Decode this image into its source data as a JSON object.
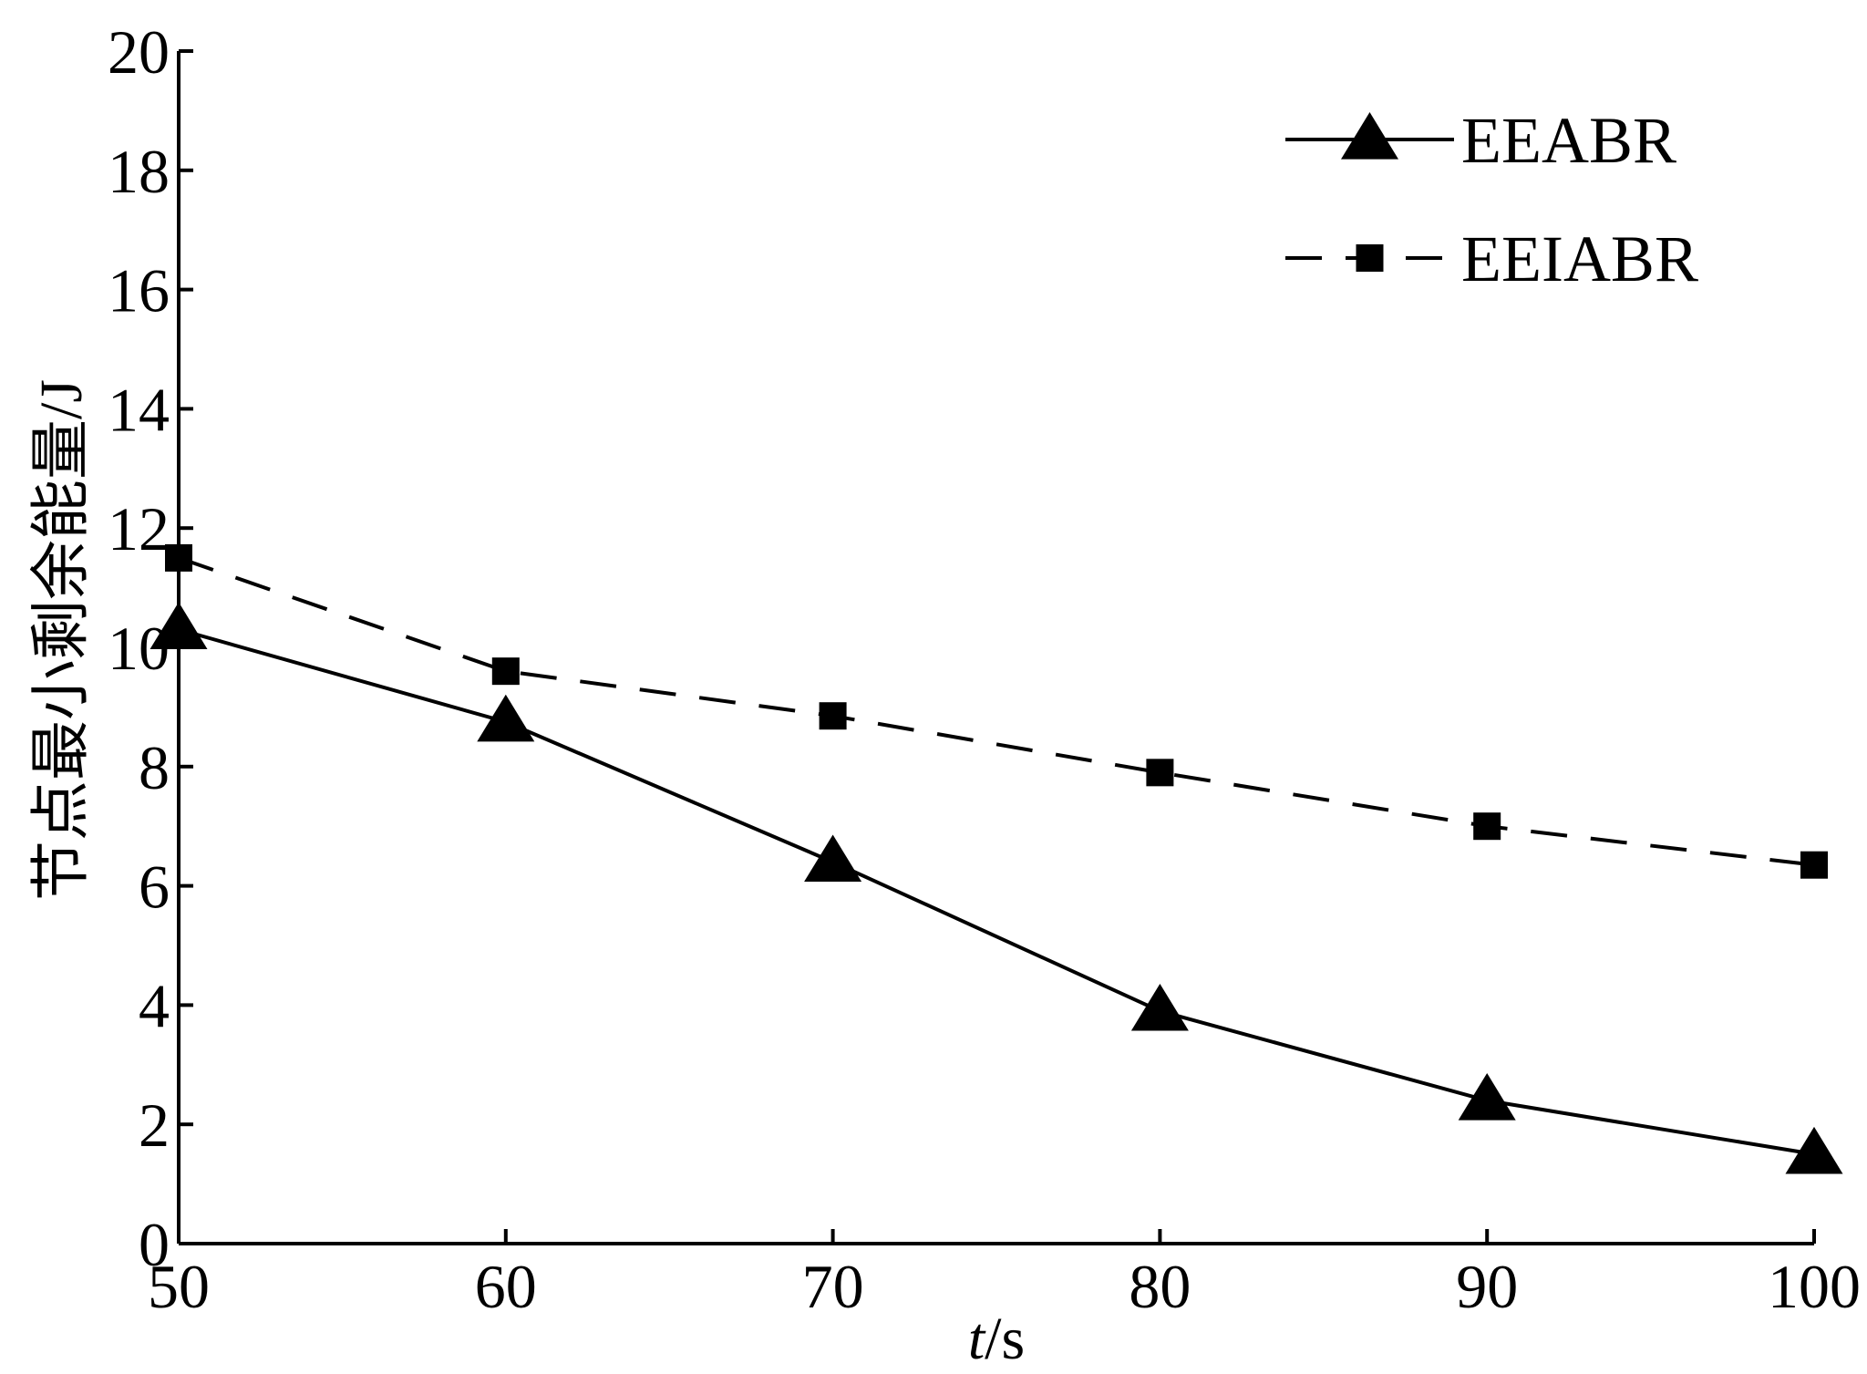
{
  "chart_data": {
    "type": "line",
    "xlabel_italic": "t",
    "xlabel_rest": "/s",
    "ylabel": "节点最小剩余能量/J",
    "xlim": [
      50,
      100
    ],
    "ylim": [
      0,
      20
    ],
    "xticks": [
      50,
      60,
      70,
      80,
      90,
      100
    ],
    "yticks": [
      0,
      2,
      4,
      6,
      8,
      10,
      12,
      14,
      16,
      18,
      20
    ],
    "grid": false,
    "legend_position": "top-right",
    "x": [
      50,
      60,
      70,
      80,
      90,
      100
    ],
    "series": [
      {
        "name": "EEABR",
        "values": [
          10.3,
          8.75,
          6.4,
          3.9,
          2.4,
          1.5
        ],
        "marker": "triangle",
        "line_style": "solid",
        "color": "#000000"
      },
      {
        "name": "EEIABR",
        "values": [
          11.5,
          9.6,
          8.85,
          7.9,
          7.0,
          6.35
        ],
        "marker": "square",
        "line_style": "dashed",
        "color": "#000000"
      }
    ]
  }
}
